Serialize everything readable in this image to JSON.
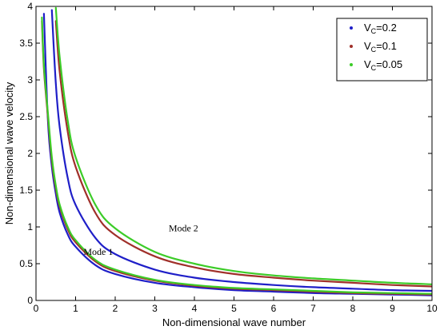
{
  "chart_data": {
    "type": "line",
    "title": "",
    "xlabel": "Non-dimensional wave number",
    "ylabel": "Non-dimensional wave velocity",
    "xlim": [
      0,
      10
    ],
    "ylim": [
      0,
      4
    ],
    "x_ticks": [
      "0",
      "1",
      "2",
      "3",
      "4",
      "5",
      "6",
      "7",
      "8",
      "9",
      "10"
    ],
    "y_ticks": [
      "0",
      "0.5",
      "1",
      "1.5",
      "2",
      "2.5",
      "3",
      "3.5",
      "4"
    ],
    "grid": false,
    "legend_position": "top-right",
    "annotations": [
      {
        "text": "Mode 1",
        "x": 1.2,
        "y": 0.62
      },
      {
        "text": "Mode 2",
        "x": 3.35,
        "y": 0.94
      }
    ],
    "x": [
      0.15,
      0.2,
      0.3,
      0.4,
      0.5,
      0.6,
      0.8,
      1,
      1.5,
      2,
      3,
      4,
      5,
      6,
      7,
      8,
      9,
      10
    ],
    "series": [
      {
        "name": "V_C=0.2",
        "legend_main": "V",
        "legend_sub": "C",
        "legend_value": "=0.2",
        "color": "#1f1fc8",
        "mode1": [
          null,
          3.9,
          2.45,
          1.82,
          1.45,
          1.19,
          0.9,
          0.73,
          0.48,
          0.36,
          0.24,
          0.18,
          0.14,
          0.12,
          0.1,
          0.09,
          0.08,
          0.07
        ],
        "mode2": [
          null,
          null,
          null,
          3.95,
          2.95,
          2.35,
          1.67,
          1.3,
          0.85,
          0.63,
          0.42,
          0.31,
          0.25,
          0.21,
          0.18,
          0.16,
          0.14,
          0.13
        ]
      },
      {
        "name": "V_C=0.1",
        "legend_main": "V",
        "legend_sub": "C",
        "legend_value": "=0.1",
        "color": "#a0302a",
        "mode1": [
          3.8,
          3.15,
          2.5,
          1.9,
          1.52,
          1.27,
          0.97,
          0.79,
          0.53,
          0.4,
          0.27,
          0.2,
          0.16,
          0.14,
          0.12,
          0.1,
          0.09,
          0.08
        ],
        "mode2": [
          null,
          null,
          null,
          null,
          3.8,
          3.1,
          2.3,
          1.82,
          1.19,
          0.89,
          0.6,
          0.45,
          0.36,
          0.31,
          0.27,
          0.24,
          0.21,
          0.19
        ]
      },
      {
        "name": "V_C=0.05",
        "legend_main": "V",
        "legend_sub": "C",
        "legend_value": "=0.05",
        "color": "#3ccc28",
        "mode1": [
          3.85,
          3.2,
          2.55,
          1.95,
          1.56,
          1.3,
          1.0,
          0.82,
          0.55,
          0.42,
          0.28,
          0.21,
          0.17,
          0.15,
          0.13,
          0.11,
          0.1,
          0.09
        ],
        "mode2": [
          null,
          null,
          null,
          null,
          3.98,
          3.3,
          2.45,
          1.95,
          1.3,
          0.98,
          0.66,
          0.5,
          0.4,
          0.34,
          0.3,
          0.27,
          0.24,
          0.22
        ]
      }
    ]
  }
}
